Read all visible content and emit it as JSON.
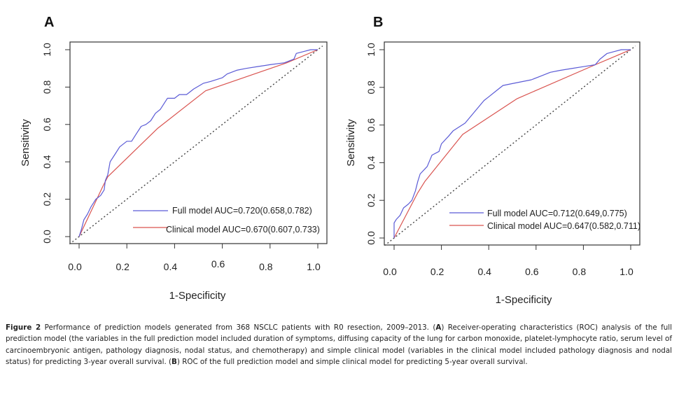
{
  "chart_data": [
    {
      "type": "line",
      "panel": "A",
      "title": "",
      "xlabel": "1-Specificity",
      "ylabel": "Sensitivity",
      "xlim": [
        0,
        1
      ],
      "ylim": [
        0,
        1
      ],
      "x_ticks": [
        "0.0",
        "0.2",
        "0.4",
        "0.6",
        "0.8",
        "1.0"
      ],
      "y_ticks": [
        "0.0",
        "0.2",
        "0.4",
        "0.6",
        "0.8",
        "1.0"
      ],
      "legend_position": "bottom-right",
      "reference_line": {
        "name": "chance",
        "style": "dotted",
        "points": [
          [
            0,
            0
          ],
          [
            1,
            1
          ]
        ],
        "color": "#444444"
      },
      "series": [
        {
          "name": "Full model AUC=0.720(0.658,0.782)",
          "color": "#5b5bd6",
          "points": [
            [
              0,
              0
            ],
            [
              0.01,
              0.04
            ],
            [
              0.02,
              0.09
            ],
            [
              0.035,
              0.12
            ],
            [
              0.05,
              0.16
            ],
            [
              0.07,
              0.2
            ],
            [
              0.09,
              0.22
            ],
            [
              0.105,
              0.25
            ],
            [
              0.11,
              0.3
            ],
            [
              0.12,
              0.33
            ],
            [
              0.13,
              0.4
            ],
            [
              0.15,
              0.44
            ],
            [
              0.17,
              0.48
            ],
            [
              0.2,
              0.51
            ],
            [
              0.22,
              0.51
            ],
            [
              0.24,
              0.55
            ],
            [
              0.26,
              0.59
            ],
            [
              0.28,
              0.6
            ],
            [
              0.3,
              0.62
            ],
            [
              0.32,
              0.66
            ],
            [
              0.34,
              0.68
            ],
            [
              0.37,
              0.74
            ],
            [
              0.4,
              0.74
            ],
            [
              0.42,
              0.76
            ],
            [
              0.45,
              0.76
            ],
            [
              0.48,
              0.79
            ],
            [
              0.52,
              0.82
            ],
            [
              0.55,
              0.83
            ],
            [
              0.6,
              0.85
            ],
            [
              0.62,
              0.87
            ],
            [
              0.66,
              0.89
            ],
            [
              0.7,
              0.9
            ],
            [
              0.75,
              0.91
            ],
            [
              0.8,
              0.92
            ],
            [
              0.86,
              0.93
            ],
            [
              0.9,
              0.95
            ],
            [
              0.91,
              0.98
            ],
            [
              0.94,
              0.99
            ],
            [
              0.97,
              1.0
            ],
            [
              1,
              1
            ]
          ]
        },
        {
          "name": "Clinical model AUC=0.670(0.607,0.733)",
          "color": "#d9534f",
          "points": [
            [
              0,
              0
            ],
            [
              0.1,
              0.27
            ],
            [
              0.12,
              0.32
            ],
            [
              0.33,
              0.58
            ],
            [
              0.53,
              0.78
            ],
            [
              0.87,
              0.93
            ],
            [
              1,
              1
            ]
          ]
        }
      ]
    },
    {
      "type": "line",
      "panel": "B",
      "title": "",
      "xlabel": "1-Specificity",
      "ylabel": "Sensitivity",
      "xlim": [
        0,
        1
      ],
      "ylim": [
        0,
        1
      ],
      "x_ticks": [
        "0.0",
        "0.2",
        "0.4",
        "0.6",
        "0.8",
        "1.0"
      ],
      "y_ticks": [
        "0.0",
        "0.2",
        "0.4",
        "0.6",
        "0.8",
        "1.0"
      ],
      "legend_position": "bottom-right",
      "reference_line": {
        "name": "chance",
        "style": "dotted",
        "points": [
          [
            0,
            0
          ],
          [
            1,
            1
          ]
        ],
        "color": "#444444"
      },
      "series": [
        {
          "name": "Full model AUC=0.712(0.649,0.775)",
          "color": "#5b5bd6",
          "points": [
            [
              0,
              0
            ],
            [
              0,
              0.08
            ],
            [
              0.01,
              0.1
            ],
            [
              0.025,
              0.12
            ],
            [
              0.04,
              0.16
            ],
            [
              0.06,
              0.18
            ],
            [
              0.075,
              0.2
            ],
            [
              0.09,
              0.25
            ],
            [
              0.1,
              0.3
            ],
            [
              0.11,
              0.34
            ],
            [
              0.14,
              0.38
            ],
            [
              0.16,
              0.44
            ],
            [
              0.19,
              0.46
            ],
            [
              0.2,
              0.5
            ],
            [
              0.23,
              0.54
            ],
            [
              0.25,
              0.57
            ],
            [
              0.3,
              0.61
            ],
            [
              0.34,
              0.67
            ],
            [
              0.38,
              0.73
            ],
            [
              0.4,
              0.75
            ],
            [
              0.44,
              0.79
            ],
            [
              0.46,
              0.81
            ],
            [
              0.5,
              0.82
            ],
            [
              0.58,
              0.84
            ],
            [
              0.62,
              0.86
            ],
            [
              0.66,
              0.88
            ],
            [
              0.7,
              0.89
            ],
            [
              0.75,
              0.9
            ],
            [
              0.8,
              0.91
            ],
            [
              0.85,
              0.92
            ],
            [
              0.87,
              0.95
            ],
            [
              0.9,
              0.98
            ],
            [
              0.93,
              0.99
            ],
            [
              0.96,
              1.0
            ],
            [
              1,
              1
            ]
          ]
        },
        {
          "name": "Clinical model AUC=0.647(0.582,0.711)",
          "color": "#d9534f",
          "points": [
            [
              0,
              0
            ],
            [
              0.1,
              0.24
            ],
            [
              0.13,
              0.3
            ],
            [
              0.29,
              0.55
            ],
            [
              0.52,
              0.74
            ],
            [
              0.85,
              0.92
            ],
            [
              1,
              1
            ]
          ]
        }
      ]
    }
  ],
  "panels": {
    "a": {
      "letter": "A",
      "xlabel": "1-Specificity",
      "ylabel": "Sensitivity",
      "x_ticks": [
        "0.0",
        "0.2",
        "0.4",
        "0.6",
        "0.8",
        "1.0"
      ],
      "y_ticks": [
        "0.0",
        "0.2",
        "0.4",
        "0.6",
        "0.8",
        "1.0"
      ],
      "legend": [
        "Full model AUC=0.720(0.658,0.782)",
        "Clinical model AUC=0.670(0.607,0.733)"
      ]
    },
    "b": {
      "letter": "B",
      "xlabel": "1-Specificity",
      "ylabel": "Sensitivity",
      "x_ticks": [
        "0.0",
        "0.2",
        "0.4",
        "0.6",
        "0.8",
        "1.0"
      ],
      "y_ticks": [
        "0.0",
        "0.2",
        "0.4",
        "0.6",
        "0.8",
        "1.0"
      ],
      "legend": [
        "Full model AUC=0.712(0.649,0.775)",
        "Clinical model AUC=0.647(0.582,0.711)"
      ]
    }
  },
  "caption": {
    "figure_label": "Figure 2",
    "part1": " Performance of prediction models generated from 368 NSCLC patients with R0 resection, 2009–2013. (",
    "a_label": "A",
    "part2": ") Receiver-operating characteristics (ROC) analysis of the full prediction model (the variables in the full prediction model included duration of symptoms, diffusing capacity of the lung for carbon monoxide, platelet-lymphocyte ratio, serum level of carcinoembryonic antigen, pathology diagnosis, nodal status, and chemotherapy) and simple clinical model (variables in the clinical model included pathology diagnosis and nodal status) for predicting 3-year overall survival. (",
    "b_label": "B",
    "part3": ") ROC of the full prediction model and simple clinical model for predicting 5-year overall survival."
  }
}
